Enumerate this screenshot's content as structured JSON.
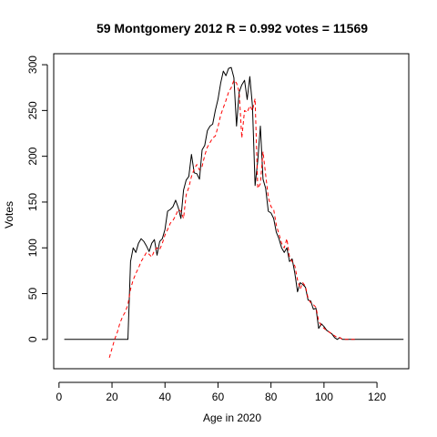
{
  "chart_data": {
    "type": "line",
    "title": "59 Montgomery 2012 R = 0.992 votes = 11569",
    "xlabel": "Age in 2020",
    "ylabel": "Votes",
    "xlim": [
      -2,
      132
    ],
    "ylim": [
      -32,
      312
    ],
    "xticks": [
      "0",
      "20",
      "40",
      "60",
      "80",
      "100",
      "120"
    ],
    "yticks": [
      "0",
      "50",
      "100",
      "150",
      "200",
      "250",
      "300"
    ],
    "grid": false,
    "legend": "none",
    "series": [
      {
        "color": "#000000",
        "dash": "solid",
        "x": [
          2,
          26,
          27,
          28,
          29,
          30,
          31,
          32,
          33,
          34,
          35,
          36,
          37,
          38,
          39,
          40,
          41,
          42,
          43,
          44,
          45,
          46,
          47,
          48,
          49,
          50,
          51,
          52,
          53,
          54,
          55,
          56,
          57,
          58,
          59,
          60,
          61,
          62,
          63,
          64,
          65,
          66,
          67,
          68,
          69,
          70,
          71,
          72,
          73,
          74,
          75,
          76,
          77,
          78,
          79,
          80,
          81,
          82,
          83,
          84,
          85,
          86,
          87,
          88,
          89,
          90,
          91,
          92,
          93,
          94,
          95,
          96,
          97,
          98,
          99,
          100,
          101,
          102,
          103,
          104,
          105,
          106,
          107,
          108,
          109,
          110,
          111,
          112,
          130
        ],
        "y": [
          0,
          0,
          85,
          100,
          95,
          105,
          110,
          107,
          102,
          96,
          105,
          109,
          92,
          107,
          110,
          120,
          140,
          142,
          145,
          152,
          144,
          132,
          163,
          174,
          178,
          202,
          182,
          181,
          175,
          207,
          212,
          228,
          233,
          235,
          250,
          262,
          280,
          293,
          288,
          296,
          297,
          286,
          233,
          270,
          278,
          283,
          262,
          287,
          255,
          168,
          195,
          233,
          175,
          165,
          140,
          138,
          132,
          117,
          110,
          100,
          95,
          100,
          85,
          88,
          72,
          52,
          62,
          60,
          57,
          43,
          42,
          33,
          34,
          12,
          17,
          14,
          10,
          8,
          6,
          2,
          0,
          2,
          0,
          0,
          0,
          0,
          0,
          0,
          0
        ]
      },
      {
        "color": "#ff0000",
        "dash": "dashed",
        "x": [
          19,
          20,
          21,
          22,
          23,
          24,
          25,
          26,
          27,
          28,
          29,
          30,
          31,
          32,
          33,
          34,
          35,
          36,
          37,
          38,
          39,
          40,
          41,
          42,
          43,
          44,
          45,
          46,
          47,
          48,
          49,
          50,
          51,
          52,
          53,
          54,
          55,
          56,
          57,
          58,
          59,
          60,
          61,
          62,
          63,
          64,
          65,
          66,
          67,
          68,
          69,
          70,
          71,
          72,
          73,
          74,
          75,
          76,
          77,
          78,
          79,
          80,
          81,
          82,
          83,
          84,
          85,
          86,
          87,
          88,
          89,
          90,
          91,
          92,
          93,
          94,
          95,
          96,
          97,
          98,
          99,
          100,
          101,
          102,
          103,
          104,
          105,
          106,
          107,
          108,
          109,
          110,
          111,
          112
        ],
        "y": [
          -20,
          -10,
          0,
          8,
          18,
          25,
          30,
          38,
          55,
          65,
          72,
          78,
          85,
          90,
          95,
          93,
          90,
          97,
          100,
          98,
          105,
          114,
          120,
          127,
          130,
          135,
          142,
          140,
          132,
          158,
          166,
          178,
          186,
          191,
          185,
          189,
          201,
          210,
          215,
          220,
          222,
          232,
          245,
          253,
          261,
          270,
          275,
          283,
          280,
          270,
          220,
          250,
          248,
          255,
          250,
          263,
          165,
          170,
          205,
          180,
          155,
          145,
          142,
          125,
          115,
          105,
          100,
          110,
          90,
          85,
          80,
          65,
          55,
          62,
          58,
          45,
          40,
          38,
          35,
          20,
          15,
          12,
          10,
          8,
          6,
          4,
          2,
          2,
          0,
          0,
          0,
          0,
          0,
          0
        ]
      }
    ]
  }
}
